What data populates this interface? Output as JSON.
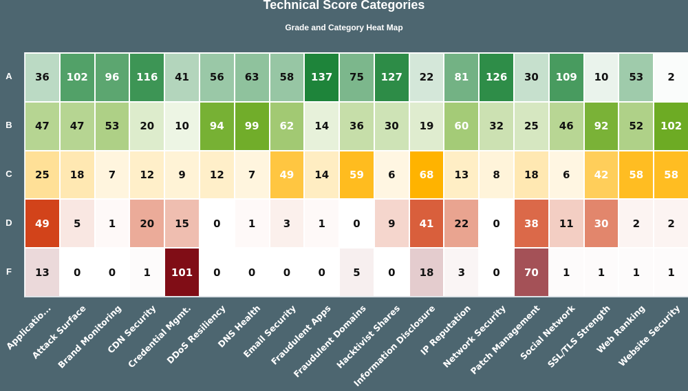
{
  "header": {
    "title": "Technical Score Categories",
    "subtitle": "Grade and Category Heat Map"
  },
  "chart_data": {
    "type": "heatmap",
    "title": "Technical Score Categories",
    "subtitle": "Grade and Category Heat Map",
    "xlabel": "",
    "ylabel": "",
    "x_categories": [
      "Applicatio...",
      "Attack Surface",
      "Brand Monitoring",
      "CDN Security",
      "Credential Mgmt.",
      "DDoS Resiliency",
      "DNS Health",
      "Email Security",
      "Fraudulent Apps",
      "Fraudulent Domains",
      "Hacktivist Shares",
      "Information Disclosure",
      "IP Reputation",
      "Network Security",
      "Patch Management",
      "Social Network",
      "SSL/TLS Strength",
      "Web Ranking",
      "Website Security"
    ],
    "y_categories": [
      "A",
      "B",
      "C",
      "D",
      "F"
    ],
    "values": [
      [
        36,
        102,
        96,
        116,
        41,
        56,
        63,
        58,
        137,
        75,
        127,
        22,
        81,
        126,
        30,
        109,
        10,
        53,
        2
      ],
      [
        47,
        47,
        53,
        20,
        10,
        94,
        99,
        62,
        14,
        36,
        30,
        19,
        60,
        32,
        25,
        46,
        92,
        52,
        102
      ],
      [
        25,
        18,
        7,
        12,
        9,
        12,
        7,
        49,
        14,
        59,
        6,
        68,
        13,
        8,
        18,
        6,
        42,
        58,
        58
      ],
      [
        49,
        5,
        1,
        20,
        15,
        0,
        1,
        3,
        1,
        0,
        9,
        41,
        22,
        0,
        38,
        11,
        30,
        2,
        2
      ],
      [
        13,
        0,
        0,
        1,
        101,
        0,
        0,
        0,
        0,
        5,
        0,
        18,
        3,
        0,
        70,
        1,
        1,
        1,
        1
      ]
    ],
    "row_color_scales": {
      "A": {
        "low": "#ffffff",
        "high": "#1e843a"
      },
      "B": {
        "low": "#ffffff",
        "high": "#6dab24"
      },
      "C": {
        "low": "#ffffff",
        "high": "#ffb300"
      },
      "D": {
        "low": "#ffffff",
        "high": "#d2431a"
      },
      "F": {
        "low": "#ffffff",
        "high": "#800d16"
      }
    },
    "legend": "none",
    "grid": false
  },
  "colors": {
    "background": "#4d6670",
    "plot_background": "#ffffff",
    "text_light": "#ffffff",
    "text_dark": "#111111"
  }
}
